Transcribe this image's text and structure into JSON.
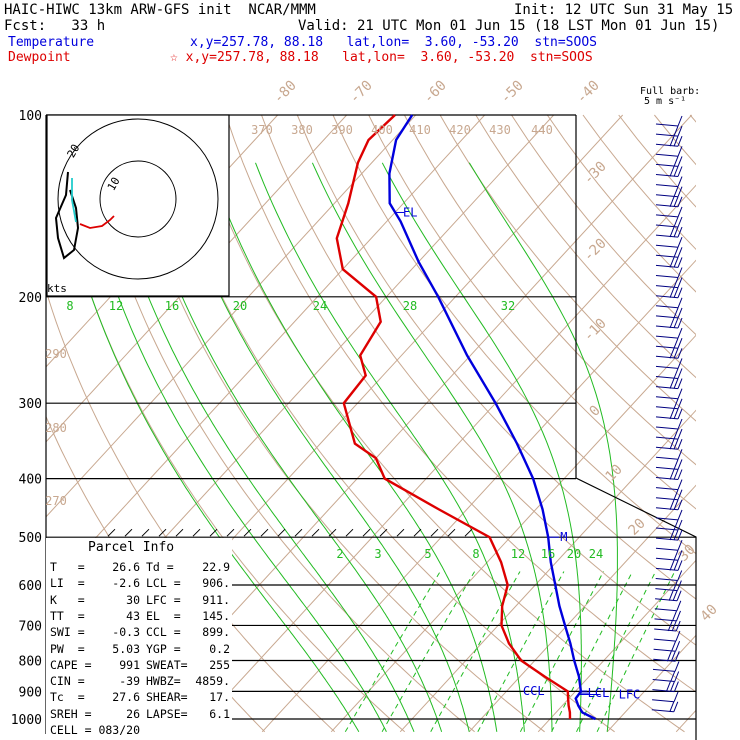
{
  "header": {
    "title": "HAIC-HIWC 13km ARW-GFS init  NCAR/MMM",
    "init": "Init: 12 UTC Sun 31 May 15",
    "fcst": "Fcst:   33 h",
    "valid": "Valid: 21 UTC Mon 01 Jun 15 (18 LST Mon 01 Jun 15)",
    "temperature_label": "Temperature",
    "dewpoint_label": "Dewpoint",
    "temp_loc": "x,y=257.78, 88.18   lat,lon=  3.60, -53.20  stn=SOOS",
    "dew_loc": "☆ x,y=257.78, 88.18   lat,lon=  3.60, -53.20  stn=SOOS",
    "full_barb": "Full barb:",
    "barb_unit": "5 m s⁻¹",
    "kts": "kts"
  },
  "parcel": {
    "title": "Parcel Info",
    "rows": [
      [
        "T   =",
        "26.6",
        "Td =",
        "22.9"
      ],
      [
        "LI  =",
        "-2.6",
        "LCL =",
        "906."
      ],
      [
        "K   =",
        "30",
        "LFC =",
        "911."
      ],
      [
        "TT  =",
        "43",
        "EL  =",
        "145."
      ],
      [
        "SWI =",
        "-0.3",
        "CCL =",
        "899."
      ],
      [
        "PW  =",
        "5.03",
        "YGP =",
        "0.2"
      ],
      [
        "CAPE =",
        "991",
        "SWEAT=",
        "255"
      ],
      [
        "CIN =",
        "-39",
        "HWBZ=",
        "4859."
      ],
      [
        "Tc  =",
        "27.6",
        "SHEAR=",
        "17."
      ],
      [
        "SREH =",
        "26",
        "LAPSE=",
        "6.1"
      ],
      [
        "CELL =",
        "083/20",
        "",
        ""
      ]
    ]
  },
  "labels": {
    "el": "EL",
    "ccl": "CCL",
    "lcl": "LCL",
    "lfc": "LFC",
    "m": "M"
  },
  "chart_data": {
    "type": "line",
    "y_scale": "log-pressure",
    "ylim": [
      1000,
      100
    ],
    "pressure_ticks": [
      100,
      200,
      300,
      400,
      500,
      600,
      700,
      800,
      900,
      1000
    ],
    "isotherm_labels": [
      "-80",
      "-70",
      "-60",
      "-50",
      "-40",
      "-30",
      "-20",
      "-10",
      "0",
      "10",
      "20",
      "30",
      "40"
    ],
    "theta_labels": [
      "370",
      "380",
      "390",
      "400",
      "410",
      "420",
      "430",
      "440",
      "290",
      "280",
      "270"
    ],
    "mixing_ratio_labels_upper": [
      "8",
      "12",
      "16",
      "20",
      "24",
      "28",
      "32"
    ],
    "mixing_ratio_labels_lower": [
      "2",
      "3",
      "5",
      "8",
      "12",
      "16",
      "20",
      "24"
    ],
    "series": [
      {
        "name": "Temperature",
        "color": "#0000dd",
        "points": [
          [
            1000,
            26.6
          ],
          [
            975,
            23.8
          ],
          [
            950,
            22.3
          ],
          [
            925,
            21.0
          ],
          [
            900,
            20.8
          ],
          [
            850,
            18.5
          ],
          [
            800,
            15.7
          ],
          [
            750,
            12.9
          ],
          [
            700,
            9.7
          ],
          [
            650,
            6.3
          ],
          [
            600,
            2.9
          ],
          [
            550,
            -0.8
          ],
          [
            500,
            -4.5
          ],
          [
            450,
            -9.0
          ],
          [
            400,
            -14.5
          ],
          [
            350,
            -21.5
          ],
          [
            300,
            -30.0
          ],
          [
            250,
            -40.5
          ],
          [
            200,
            -52.5
          ],
          [
            175,
            -60.0
          ],
          [
            150,
            -68.0
          ],
          [
            140,
            -72.0
          ],
          [
            125,
            -76.0
          ],
          [
            110,
            -79.5
          ],
          [
            100,
            -80.5
          ]
        ]
      },
      {
        "name": "Dewpoint",
        "color": "#dd0000",
        "points": [
          [
            1000,
            22.9
          ],
          [
            975,
            22.0
          ],
          [
            950,
            20.9
          ],
          [
            925,
            19.9
          ],
          [
            900,
            18.9
          ],
          [
            850,
            13.5
          ],
          [
            800,
            8.0
          ],
          [
            750,
            4.0
          ],
          [
            700,
            0.5
          ],
          [
            650,
            -2.0
          ],
          [
            600,
            -4.0
          ],
          [
            550,
            -8.0
          ],
          [
            500,
            -13.0
          ],
          [
            450,
            -24.0
          ],
          [
            400,
            -36.0
          ],
          [
            370,
            -40.0
          ],
          [
            350,
            -45.0
          ],
          [
            300,
            -52.0
          ],
          [
            270,
            -52.5
          ],
          [
            250,
            -56.0
          ],
          [
            220,
            -57.5
          ],
          [
            200,
            -61.5
          ],
          [
            180,
            -70.0
          ],
          [
            160,
            -75.0
          ],
          [
            140,
            -78.0
          ],
          [
            120,
            -82.0
          ],
          [
            110,
            -83.5
          ],
          [
            100,
            -83.0
          ]
        ]
      }
    ]
  }
}
